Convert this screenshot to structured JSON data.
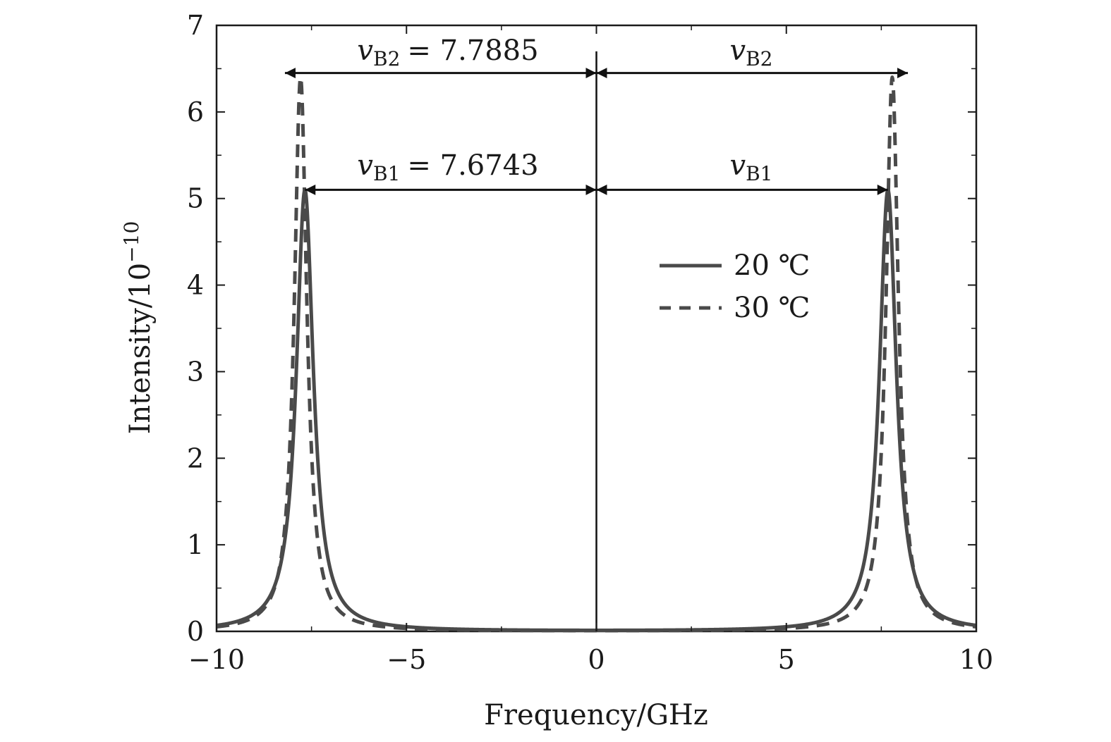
{
  "chart_data": {
    "type": "line",
    "xlabel": "Frequency/GHz",
    "ylabel_base": "Intensity/10",
    "ylabel_exp": "−10",
    "xlim": [
      -10,
      10
    ],
    "ylim": [
      0,
      7
    ],
    "x_ticks": [
      -10,
      -5,
      0,
      5,
      10
    ],
    "x_tick_labels": [
      "−10",
      "−5",
      "0",
      "5",
      "10"
    ],
    "y_ticks": [
      0,
      1,
      2,
      3,
      4,
      5,
      6,
      7
    ],
    "y_tick_labels": [
      "0",
      "1",
      "2",
      "3",
      "4",
      "5",
      "6",
      "7"
    ],
    "series": [
      {
        "name": "20 ℃",
        "style": "solid",
        "color": "#4a4a4a",
        "peaks": [
          -7.6743,
          7.6743
        ],
        "peak_value": 5.1,
        "half_width": 0.27,
        "x": [
          -10,
          -9.5,
          -9,
          -8.5,
          -8.2,
          -8.0,
          -7.9,
          -7.8,
          -7.6743,
          -7.55,
          -7.4,
          -7.2,
          -7.0,
          -6.8,
          -6.5,
          -6,
          -5,
          -3,
          0,
          3,
          5,
          6,
          6.5,
          6.8,
          7.0,
          7.2,
          7.4,
          7.55,
          7.6743,
          7.8,
          7.9,
          8.0,
          8.2,
          8.5,
          9,
          9.5,
          10
        ],
        "y": [
          0.07,
          0.12,
          0.24,
          0.55,
          1.2,
          2.2,
          3.2,
          4.4,
          5.1,
          4.4,
          3.0,
          1.6,
          0.95,
          0.6,
          0.35,
          0.16,
          0.06,
          0.02,
          0.02,
          0.02,
          0.06,
          0.16,
          0.35,
          0.6,
          0.95,
          1.6,
          3.0,
          4.4,
          5.1,
          4.4,
          3.2,
          2.2,
          1.2,
          0.55,
          0.24,
          0.12,
          0.07
        ]
      },
      {
        "name": "30 ℃",
        "style": "dashed",
        "color": "#4a4a4a",
        "peaks": [
          -7.7885,
          7.7885
        ],
        "peak_value": 6.4,
        "half_width": 0.2,
        "x": [
          -10,
          -9.5,
          -9,
          -8.5,
          -8.2,
          -8.0,
          -7.9,
          -7.85,
          -7.7885,
          -7.7,
          -7.6,
          -7.4,
          -7.2,
          -7.0,
          -6.8,
          -6.5,
          -6,
          -5,
          -3,
          0,
          3,
          5,
          6,
          6.5,
          6.8,
          7.0,
          7.2,
          7.4,
          7.6,
          7.7,
          7.7885,
          7.85,
          7.9,
          8.0,
          8.2,
          8.5,
          9,
          9.5,
          10
        ],
        "y": [
          0.06,
          0.1,
          0.2,
          0.5,
          1.2,
          2.6,
          4.0,
          5.2,
          6.4,
          5.2,
          4.0,
          2.2,
          1.1,
          0.6,
          0.35,
          0.18,
          0.08,
          0.04,
          0.02,
          0.01,
          0.02,
          0.04,
          0.08,
          0.18,
          0.35,
          0.6,
          1.1,
          2.2,
          4.0,
          5.2,
          6.4,
          5.2,
          4.0,
          2.6,
          1.2,
          0.5,
          0.2,
          0.1,
          0.06
        ]
      }
    ],
    "annotations": {
      "b2_left": {
        "var": "v",
        "sub": "B2",
        "eq": "= 7.7885",
        "y": 6.45,
        "from": -8.2,
        "to": 0
      },
      "b2_right": {
        "var": "v",
        "sub": "B2",
        "y": 6.45,
        "from": 0,
        "to": 8.2
      },
      "b1_left": {
        "var": "v",
        "sub": "B1",
        "eq": "= 7.6743",
        "y": 5.1,
        "from": -7.6743,
        "to": 0
      },
      "b1_right": {
        "var": "v",
        "sub": "B1",
        "y": 5.1,
        "from": 0,
        "to": 7.6743
      },
      "center_line_x": 0,
      "center_line_top": 6.7
    },
    "legend": {
      "placement": "upper-right-center"
    }
  }
}
